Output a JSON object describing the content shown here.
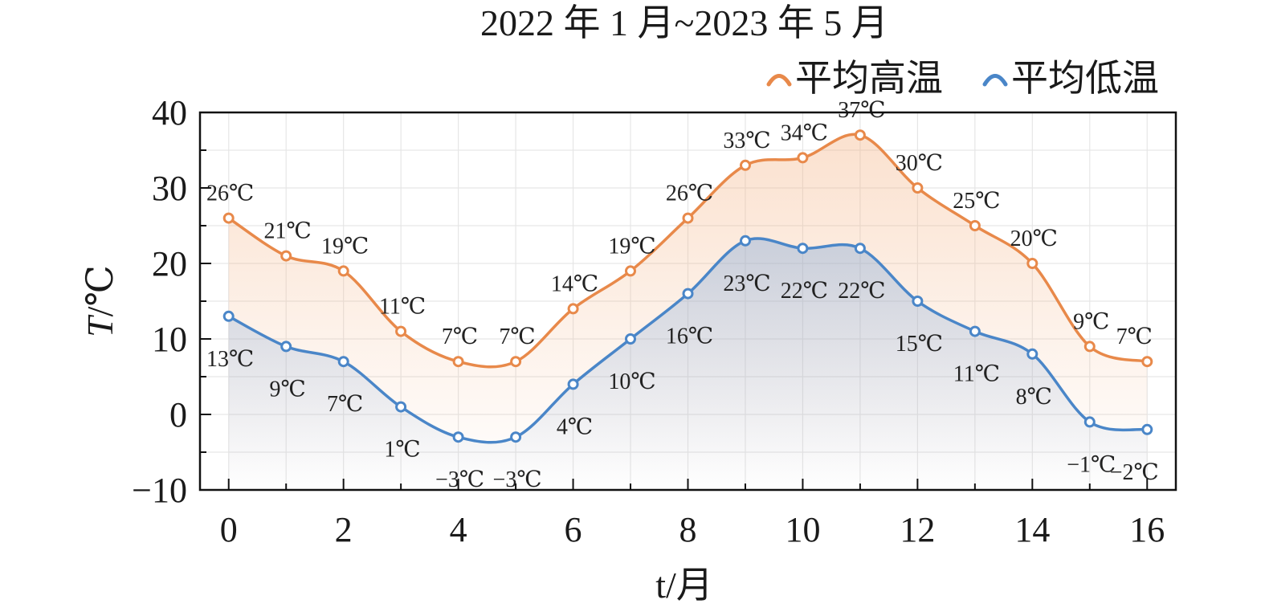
{
  "chart_data": {
    "type": "line",
    "title": "2022 年 1 月~2023 年 5 月",
    "xlabel": "t/月",
    "ylabel_italic": "T",
    "ylabel_unit": "/℃",
    "unit": "℃",
    "xlim": [
      -0.5,
      16.5
    ],
    "ylim": [
      -10,
      40
    ],
    "xticks": [
      0,
      2,
      4,
      6,
      8,
      10,
      12,
      14,
      16
    ],
    "yticks": [
      -10,
      0,
      10,
      20,
      30,
      40
    ],
    "ytick_labels": [
      "−10",
      "0",
      "10",
      "20",
      "30",
      "40"
    ],
    "grid": true,
    "legend_position": "top-right",
    "x": [
      0,
      1,
      2,
      3,
      4,
      5,
      6,
      7,
      8,
      9,
      10,
      11,
      12,
      13,
      14,
      15,
      16
    ],
    "series": [
      {
        "name": "平均高温",
        "color": "#e8894a",
        "values": [
          26,
          21,
          19,
          11,
          7,
          7,
          14,
          19,
          26,
          33,
          34,
          37,
          30,
          25,
          20,
          9,
          7
        ],
        "labels": [
          "26℃",
          "21℃",
          "19℃",
          "11℃",
          "7℃",
          "7℃",
          "14℃",
          "19℃",
          "26℃",
          "33℃",
          "34℃",
          "37℃",
          "30℃",
          "25℃",
          "20℃",
          "9℃",
          "7℃"
        ]
      },
      {
        "name": "平均低温",
        "color": "#4a86c8",
        "values": [
          13,
          9,
          7,
          1,
          -3,
          -3,
          4,
          10,
          16,
          23,
          22,
          22,
          15,
          11,
          8,
          -1,
          -2
        ],
        "labels": [
          "13℃",
          "9℃",
          "7℃",
          "1℃",
          "−3℃",
          "−3℃",
          "4℃",
          "10℃",
          "16℃",
          "23℃",
          "22℃",
          "22℃",
          "15℃",
          "11℃",
          "8℃",
          "−1℃",
          "−2℃"
        ]
      }
    ]
  }
}
